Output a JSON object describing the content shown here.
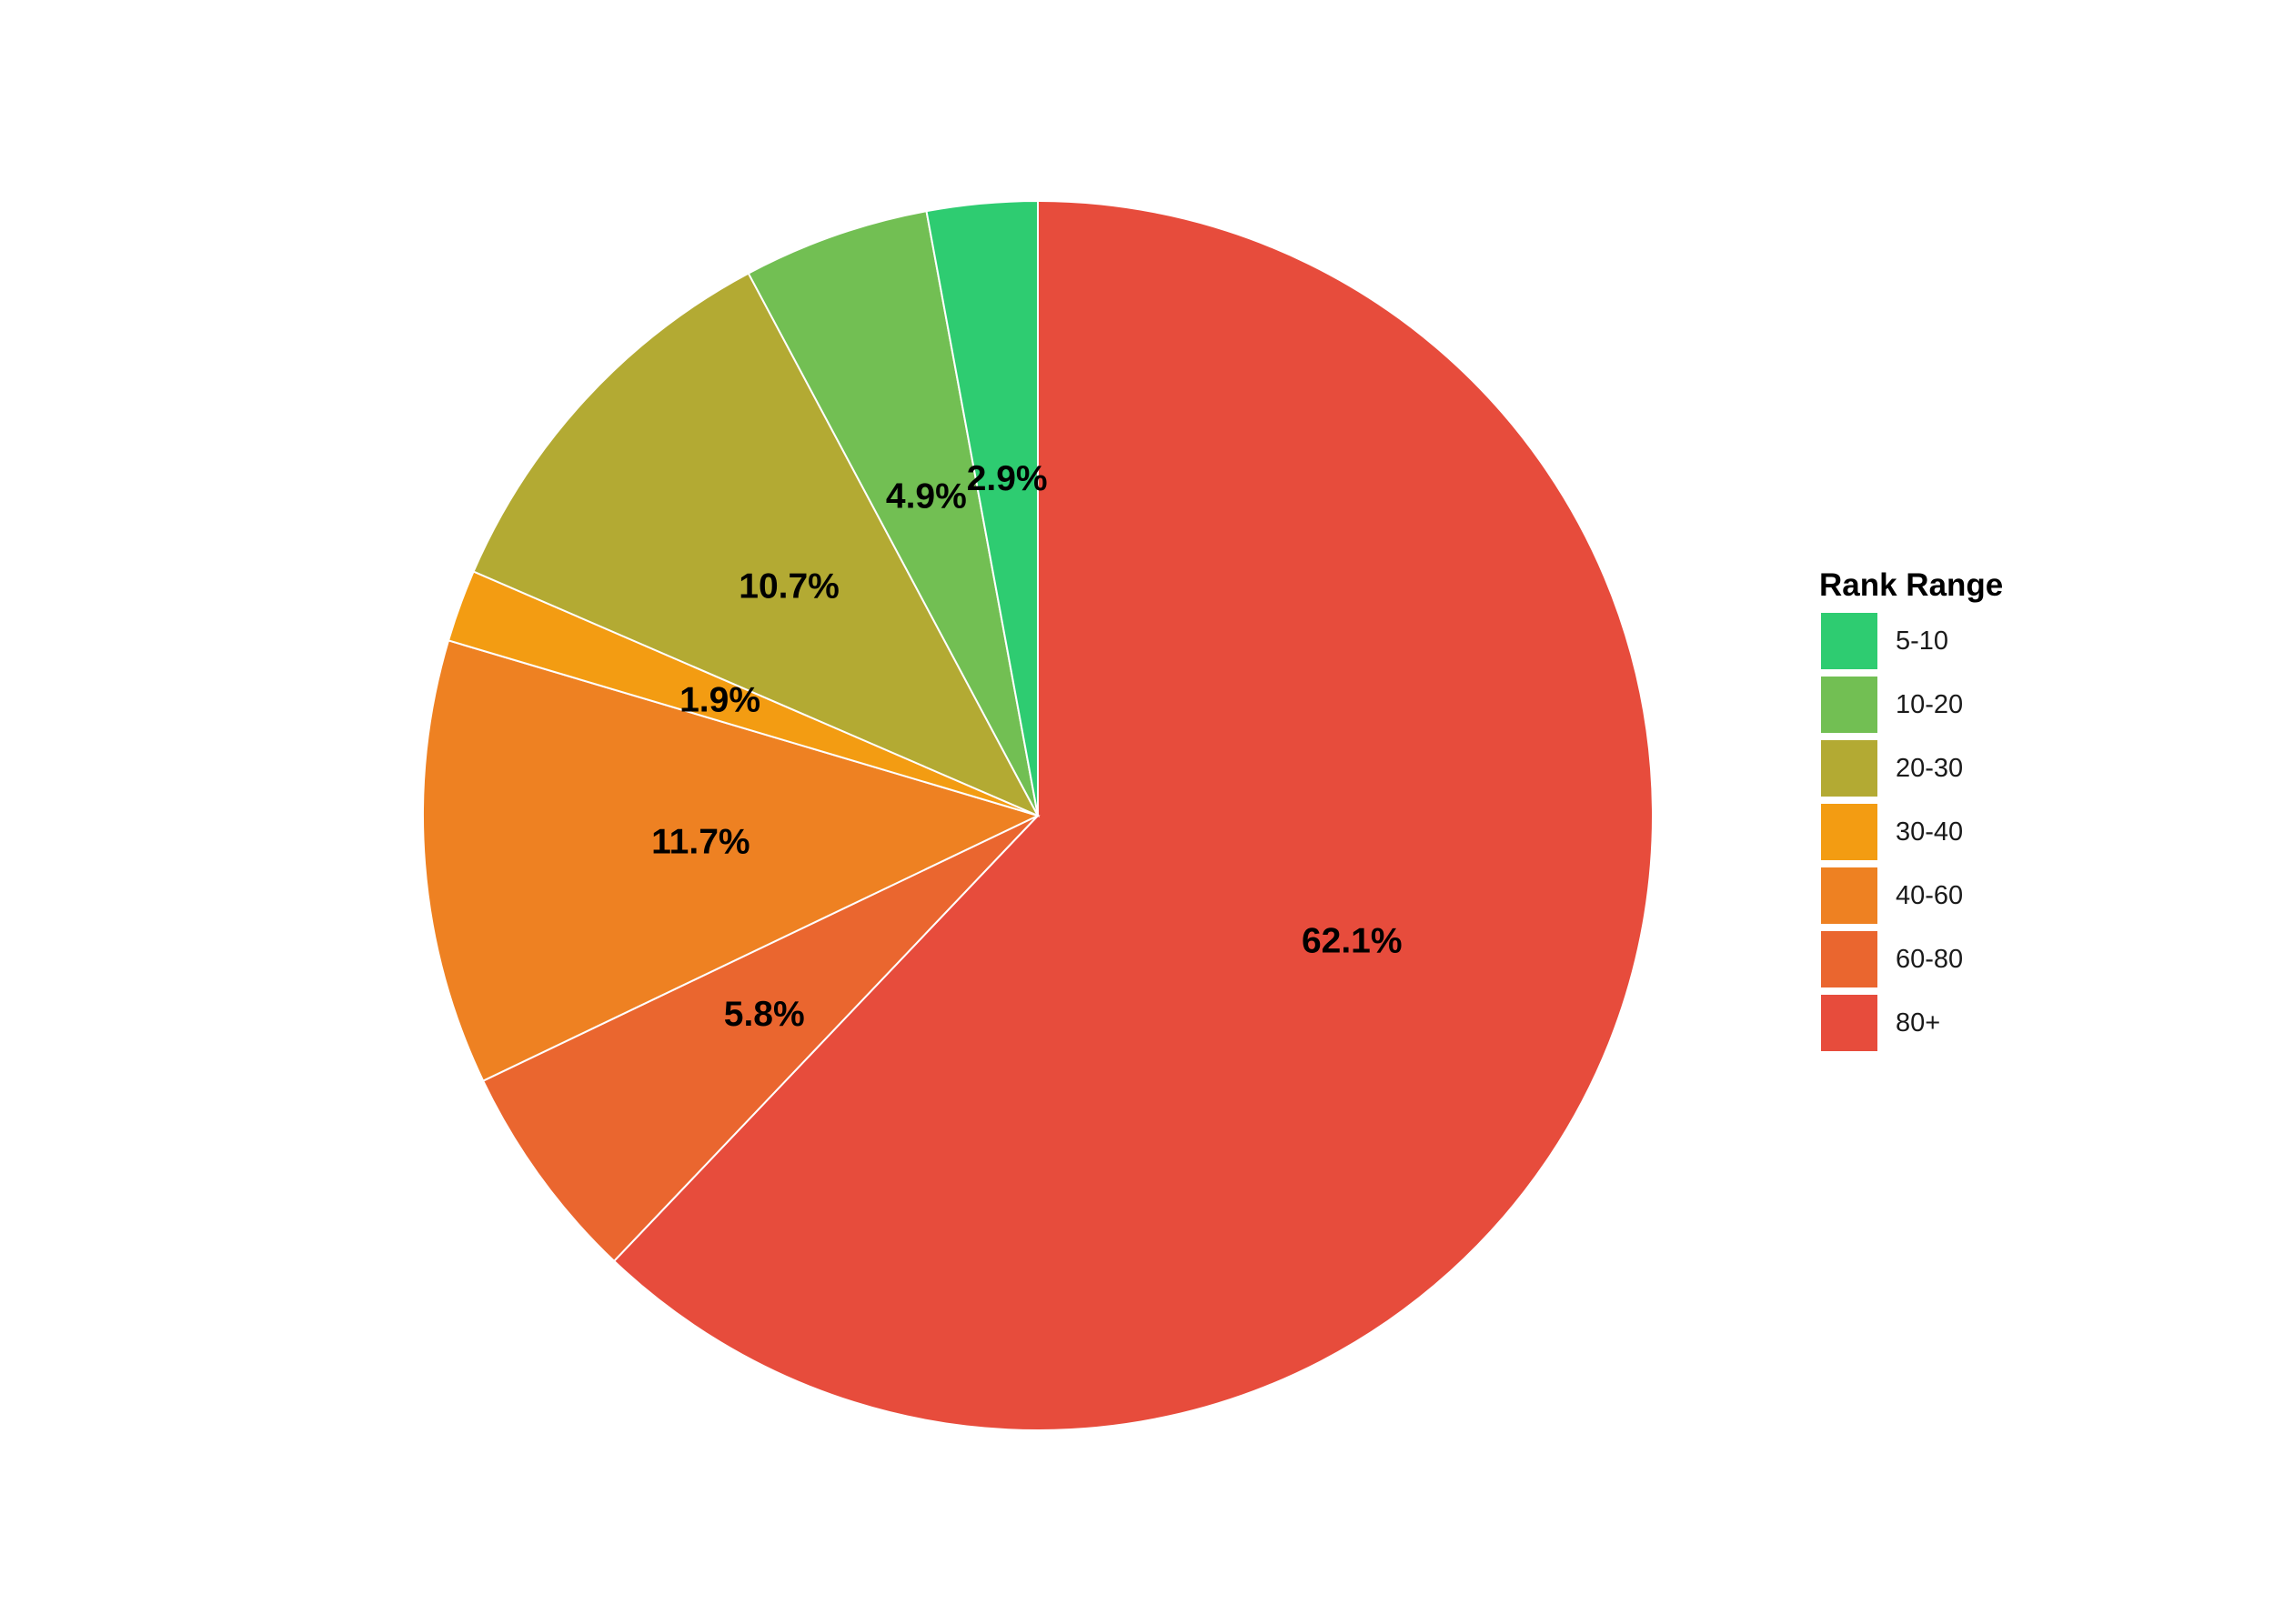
{
  "chart_data": {
    "type": "pie",
    "legend_title": "Rank Range",
    "legend_position": "right",
    "start_angle": "12 o'clock",
    "direction": "clockwise",
    "series": [
      {
        "name": "5-10",
        "value": 2.9,
        "label": "2.9%",
        "color": "#2ecc71"
      },
      {
        "name": "10-20",
        "value": 4.9,
        "label": "4.9%",
        "color": "#72bf53"
      },
      {
        "name": "20-30",
        "value": 10.7,
        "label": "10.7%",
        "color": "#b3aa33"
      },
      {
        "name": "30-40",
        "value": 1.9,
        "label": "1.9%",
        "color": "#f39c12"
      },
      {
        "name": "40-60",
        "value": 11.7,
        "label": "11.7%",
        "color": "#ee8122"
      },
      {
        "name": "60-80",
        "value": 5.8,
        "label": "5.8%",
        "color": "#ea662f"
      },
      {
        "name": "80+",
        "value": 62.1,
        "label": "62.1%",
        "color": "#e74c3c"
      }
    ]
  }
}
